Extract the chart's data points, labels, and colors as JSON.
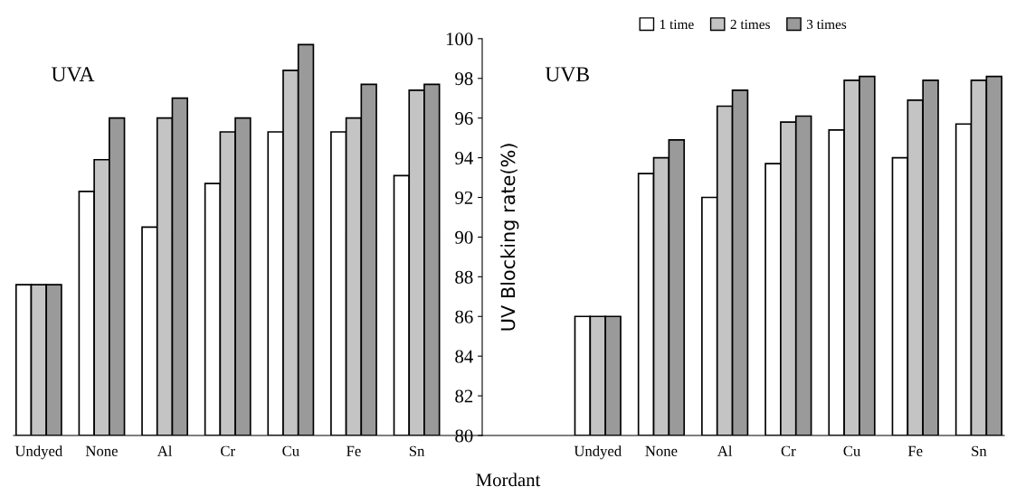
{
  "chart_data": [
    {
      "type": "bar",
      "title": "UVA",
      "categories": [
        "Undyed",
        "None",
        "Al",
        "Cr",
        "Cu",
        "Fe",
        "Sn"
      ],
      "series": [
        {
          "color": "#ffffff",
          "values": [
            87.6,
            92.3,
            90.5,
            92.7,
            95.3,
            95.3,
            93.1
          ]
        },
        {
          "color": "#c4c4c4",
          "values": [
            87.6,
            93.9,
            96.0,
            95.3,
            98.4,
            96.0,
            97.4
          ]
        },
        {
          "color": "#9a9a9a",
          "values": [
            87.6,
            96.0,
            97.0,
            96.0,
            99.7,
            97.7,
            97.7
          ]
        }
      ],
      "ylim": [
        80,
        100
      ],
      "yticks": [
        80,
        82,
        84,
        86,
        88,
        90,
        92,
        94,
        96,
        98,
        100
      ],
      "tick_labels": "x",
      "grid": false
    },
    {
      "type": "bar",
      "title": "UVB",
      "xlabel": "Mordant",
      "ylabel": "UV Blocking rate(%)",
      "categories": [
        "Undyed",
        "None",
        "Al",
        "Cr",
        "Cu",
        "Fe",
        "Sn"
      ],
      "series": [
        {
          "name": "1 time",
          "color": "#ffffff",
          "values": [
            86.0,
            93.2,
            92.0,
            93.7,
            95.4,
            94.0,
            95.7
          ]
        },
        {
          "name": "2 times",
          "color": "#c4c4c4",
          "values": [
            86.0,
            94.0,
            96.6,
            95.8,
            97.9,
            96.9,
            97.9
          ]
        },
        {
          "name": "3 times",
          "color": "#9a9a9a",
          "values": [
            86.0,
            94.9,
            97.4,
            96.1,
            98.1,
            97.9,
            98.1
          ]
        }
      ],
      "ylim": [
        80,
        100
      ],
      "yticks": [
        80,
        82,
        84,
        86,
        88,
        90,
        92,
        94,
        96,
        98,
        100
      ],
      "legend": "top",
      "grid": false
    }
  ]
}
